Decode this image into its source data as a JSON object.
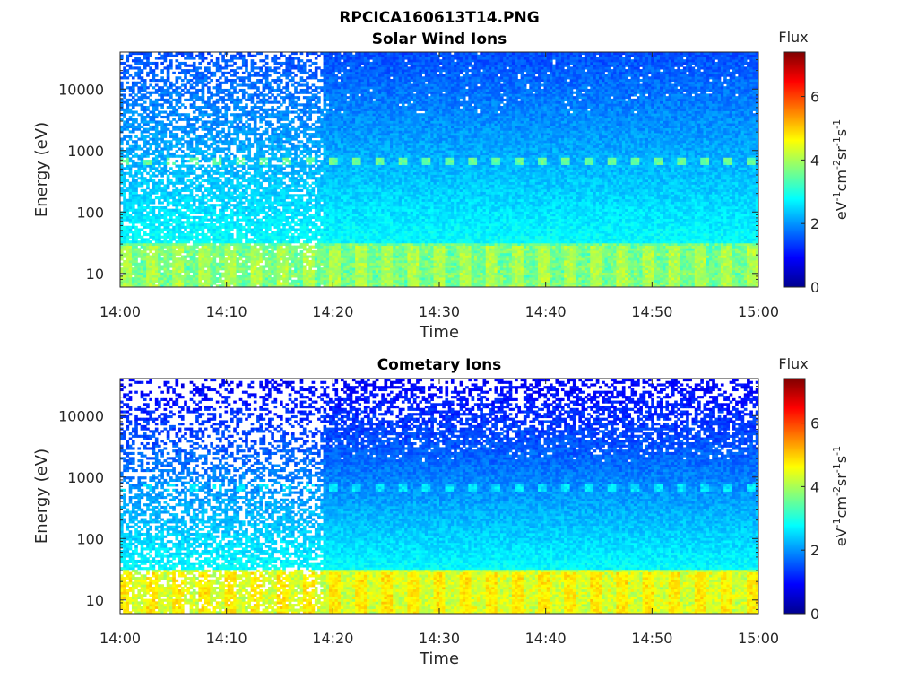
{
  "figure_title": "RPCICA160613T14.PNG",
  "chart_data": [
    {
      "type": "heatmap",
      "title": "Solar Wind Ions",
      "xlabel": "Time",
      "ylabel": "Energy (eV)",
      "x_range": [
        "14:00",
        "15:00"
      ],
      "x_ticks": [
        "14:00",
        "14:10",
        "14:20",
        "14:30",
        "14:40",
        "14:50",
        "15:00"
      ],
      "y_scale": "log",
      "y_range_eV": [
        6,
        40000
      ],
      "y_ticks": [
        10,
        100,
        1000,
        10000
      ],
      "y_tick_labels": [
        "10",
        "100",
        "1000",
        "10000"
      ],
      "colorbar": {
        "title": "Flux",
        "unit_parts": [
          "eV",
          "-1",
          "cm",
          "-2",
          "sr",
          "-1",
          "s",
          "-1"
        ],
        "range": [
          0,
          7.4
        ],
        "ticks": [
          0,
          2,
          4,
          6
        ],
        "colormap": "jet"
      },
      "features": {
        "sparse_data_until": "14:19",
        "sweep_band_energy_eV": 650,
        "low_energy_peak_flux": 3.9
      }
    },
    {
      "type": "heatmap",
      "title": "Cometary Ions",
      "xlabel": "Time",
      "ylabel": "Energy (eV)",
      "x_range": [
        "14:00",
        "15:00"
      ],
      "x_ticks": [
        "14:00",
        "14:10",
        "14:20",
        "14:30",
        "14:40",
        "14:50",
        "15:00"
      ],
      "y_scale": "log",
      "y_range_eV": [
        6,
        40000
      ],
      "y_ticks": [
        10,
        100,
        1000,
        10000
      ],
      "y_tick_labels": [
        "10",
        "100",
        "1000",
        "10000"
      ],
      "colorbar": {
        "title": "Flux",
        "unit_parts": [
          "eV",
          "-1",
          "cm",
          "-2",
          "sr",
          "-1",
          "s",
          "-1"
        ],
        "range": [
          0,
          7.4
        ],
        "ticks": [
          0,
          2,
          4,
          6
        ],
        "colormap": "jet"
      },
      "features": {
        "sparse_data_until": "14:19",
        "sweep_band_energy_eV": 650,
        "low_energy_peak_flux": 4.6
      }
    }
  ]
}
